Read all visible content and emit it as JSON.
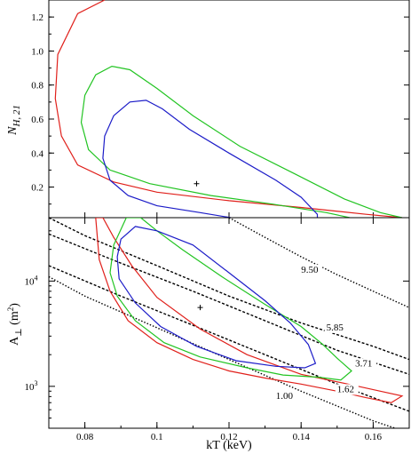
{
  "chart_data": [
    {
      "type": "contour",
      "panel": "top",
      "ylabel": "N_H, 21",
      "ylabel_main": "N",
      "ylabel_sub": "H, 21",
      "xlim": [
        0.07,
        0.17
      ],
      "ylim": [
        0.02,
        1.3
      ],
      "y_ticks": [
        0.2,
        0.4,
        0.6,
        0.8,
        1.0,
        1.2
      ],
      "y_tick_labels": [
        "0.2",
        "0.4",
        "0.6",
        "0.8",
        "1.0",
        "1.2"
      ],
      "best_fit": {
        "x": 0.111,
        "y": 0.22
      },
      "contours": [
        {
          "color": "#e0201b",
          "points": [
            [
              0.0855,
              1.3
            ],
            [
              0.078,
              1.22
            ],
            [
              0.0725,
              0.98
            ],
            [
              0.0718,
              0.72
            ],
            [
              0.0735,
              0.5
            ],
            [
              0.078,
              0.33
            ],
            [
              0.088,
              0.23
            ],
            [
              0.1,
              0.17
            ],
            [
              0.12,
              0.12
            ],
            [
              0.14,
              0.08
            ],
            [
              0.158,
              0.04
            ],
            [
              0.168,
              0.02
            ]
          ]
        },
        {
          "color": "#22c422",
          "points": [
            [
              0.1535,
              0.02
            ],
            [
              0.147,
              0.05
            ],
            [
              0.132,
              0.1
            ],
            [
              0.115,
              0.15
            ],
            [
              0.098,
              0.22
            ],
            [
              0.087,
              0.3
            ],
            [
              0.081,
              0.42
            ],
            [
              0.079,
              0.58
            ],
            [
              0.08,
              0.74
            ],
            [
              0.083,
              0.86
            ],
            [
              0.0875,
              0.91
            ],
            [
              0.0925,
              0.89
            ],
            [
              0.1,
              0.78
            ],
            [
              0.11,
              0.62
            ],
            [
              0.123,
              0.44
            ],
            [
              0.138,
              0.28
            ],
            [
              0.152,
              0.13
            ],
            [
              0.162,
              0.05
            ],
            [
              0.168,
              0.02
            ]
          ]
        },
        {
          "color": "#1c1cc8",
          "points": [
            [
              0.1205,
              0.02
            ],
            [
              0.112,
              0.05
            ],
            [
              0.1,
              0.09
            ],
            [
              0.092,
              0.15
            ],
            [
              0.087,
              0.24
            ],
            [
              0.085,
              0.37
            ],
            [
              0.0855,
              0.5
            ],
            [
              0.088,
              0.62
            ],
            [
              0.0925,
              0.7
            ],
            [
              0.097,
              0.71
            ],
            [
              0.1015,
              0.66
            ],
            [
              0.109,
              0.54
            ],
            [
              0.12,
              0.4
            ],
            [
              0.133,
              0.24
            ],
            [
              0.14,
              0.14
            ],
            [
              0.1445,
              0.04
            ],
            [
              0.1445,
              0.02
            ]
          ]
        }
      ]
    },
    {
      "type": "contour",
      "panel": "bottom",
      "xlabel": "kT (keV)",
      "ylabel": "A⊥ (m²)",
      "ylabel_main": "A",
      "ylabel_sub": "⊥",
      "ylabel_unit": " (m",
      "ylabel_sup": "2",
      "ylabel_end": ")",
      "xlim": [
        0.07,
        0.17
      ],
      "ylim": [
        400,
        40000
      ],
      "yscale": "log",
      "x_ticks": [
        0.08,
        0.1,
        0.12,
        0.14,
        0.16
      ],
      "x_tick_labels": [
        "0.08",
        "0.1",
        "0.12",
        "0.14",
        "0.16"
      ],
      "y_ticks": [
        1000,
        10000
      ],
      "y_tick_labels": [
        {
          "base": "10",
          "exp": "3"
        },
        {
          "base": "10",
          "exp": "4"
        }
      ],
      "best_fit": {
        "x": 0.112,
        "y": 5600
      },
      "iso_lines": [
        {
          "label": "9.50",
          "dash": "1.5,2",
          "points": [
            [
              0.12,
              40000
            ],
            [
              0.13,
              26000
            ],
            [
              0.14,
              17000
            ],
            [
              0.15,
              11500
            ],
            [
              0.16,
              8000
            ],
            [
              0.17,
              5600
            ]
          ],
          "label_at": [
            0.14,
            12000
          ]
        },
        {
          "label": "5.85",
          "dash": "3,2",
          "points": [
            [
              0.07,
              40000
            ],
            [
              0.08,
              27000
            ],
            [
              0.1,
              14000
            ],
            [
              0.12,
              7200
            ],
            [
              0.14,
              4000
            ],
            [
              0.16,
              2400
            ],
            [
              0.17,
              1800
            ]
          ],
          "label_at": [
            0.147,
            3400
          ]
        },
        {
          "label": "3.71",
          "dash": "3,2",
          "points": [
            [
              0.07,
              28000
            ],
            [
              0.09,
              14800
            ],
            [
              0.11,
              8000
            ],
            [
              0.13,
              4200
            ],
            [
              0.15,
              2200
            ],
            [
              0.17,
              1300
            ]
          ],
          "label_at": [
            0.155,
            1550
          ]
        },
        {
          "label": "1.62",
          "dash": "3,2",
          "points": [
            [
              0.07,
              14000
            ],
            [
              0.09,
              7200
            ],
            [
              0.11,
              3800
            ],
            [
              0.13,
              2000
            ],
            [
              0.15,
              1050
            ],
            [
              0.17,
              580
            ]
          ],
          "label_at": [
            0.15,
            880
          ]
        },
        {
          "label": "1.00",
          "dash": "1.5,2",
          "points": [
            [
              0.07,
              11000
            ],
            [
              0.08,
              7200
            ],
            [
              0.1,
              3600
            ],
            [
              0.12,
              1800
            ],
            [
              0.14,
              900
            ],
            [
              0.16,
              470
            ],
            [
              0.17,
              360
            ]
          ],
          "label_at": [
            0.133,
            760
          ]
        }
      ],
      "contours": [
        {
          "color": "#e0201b",
          "points": [
            [
              0.085,
              40000
            ],
            [
              0.088,
              26000
            ],
            [
              0.093,
              14000
            ],
            [
              0.1,
              7000
            ],
            [
              0.112,
              3500
            ],
            [
              0.125,
              2000
            ],
            [
              0.14,
              1300
            ],
            [
              0.153,
              1050
            ],
            [
              0.162,
              900
            ],
            [
              0.168,
              810
            ],
            [
              0.165,
              700
            ],
            [
              0.158,
              780
            ],
            [
              0.15,
              900
            ],
            [
              0.14,
              1050
            ],
            [
              0.13,
              1200
            ],
            [
              0.12,
              1400
            ],
            [
              0.11,
              1800
            ],
            [
              0.1,
              2600
            ],
            [
              0.092,
              4200
            ],
            [
              0.087,
              8000
            ],
            [
              0.084,
              16000
            ],
            [
              0.083,
              40000
            ]
          ]
        },
        {
          "color": "#22c422",
          "points": [
            [
              0.0955,
              40000
            ],
            [
              0.1,
              30000
            ],
            [
              0.107,
              20000
            ],
            [
              0.118,
              11000
            ],
            [
              0.13,
              6000
            ],
            [
              0.14,
              3700
            ],
            [
              0.146,
              2500
            ],
            [
              0.15,
              1850
            ],
            [
              0.154,
              1400
            ],
            [
              0.151,
              1150
            ],
            [
              0.145,
              1220
            ],
            [
              0.135,
              1280
            ],
            [
              0.125,
              1500
            ],
            [
              0.112,
              1900
            ],
            [
              0.102,
              2600
            ],
            [
              0.094,
              4200
            ],
            [
              0.089,
              7200
            ],
            [
              0.087,
              12000
            ],
            [
              0.088,
              22000
            ],
            [
              0.0915,
              40000
            ]
          ]
        },
        {
          "color": "#1c1cc8",
          "points": [
            [
              0.094,
              33000
            ],
            [
              0.1,
              30000
            ],
            [
              0.11,
              22000
            ],
            [
              0.12,
              12000
            ],
            [
              0.13,
              6500
            ],
            [
              0.137,
              4000
            ],
            [
              0.142,
              2500
            ],
            [
              0.144,
              1650
            ],
            [
              0.141,
              1500
            ],
            [
              0.133,
              1550
            ],
            [
              0.122,
              1750
            ],
            [
              0.111,
              2400
            ],
            [
              0.101,
              3700
            ],
            [
              0.094,
              6200
            ],
            [
              0.0895,
              10500
            ],
            [
              0.089,
              17000
            ],
            [
              0.09,
              25000
            ],
            [
              0.094,
              33000
            ]
          ]
        }
      ]
    }
  ]
}
